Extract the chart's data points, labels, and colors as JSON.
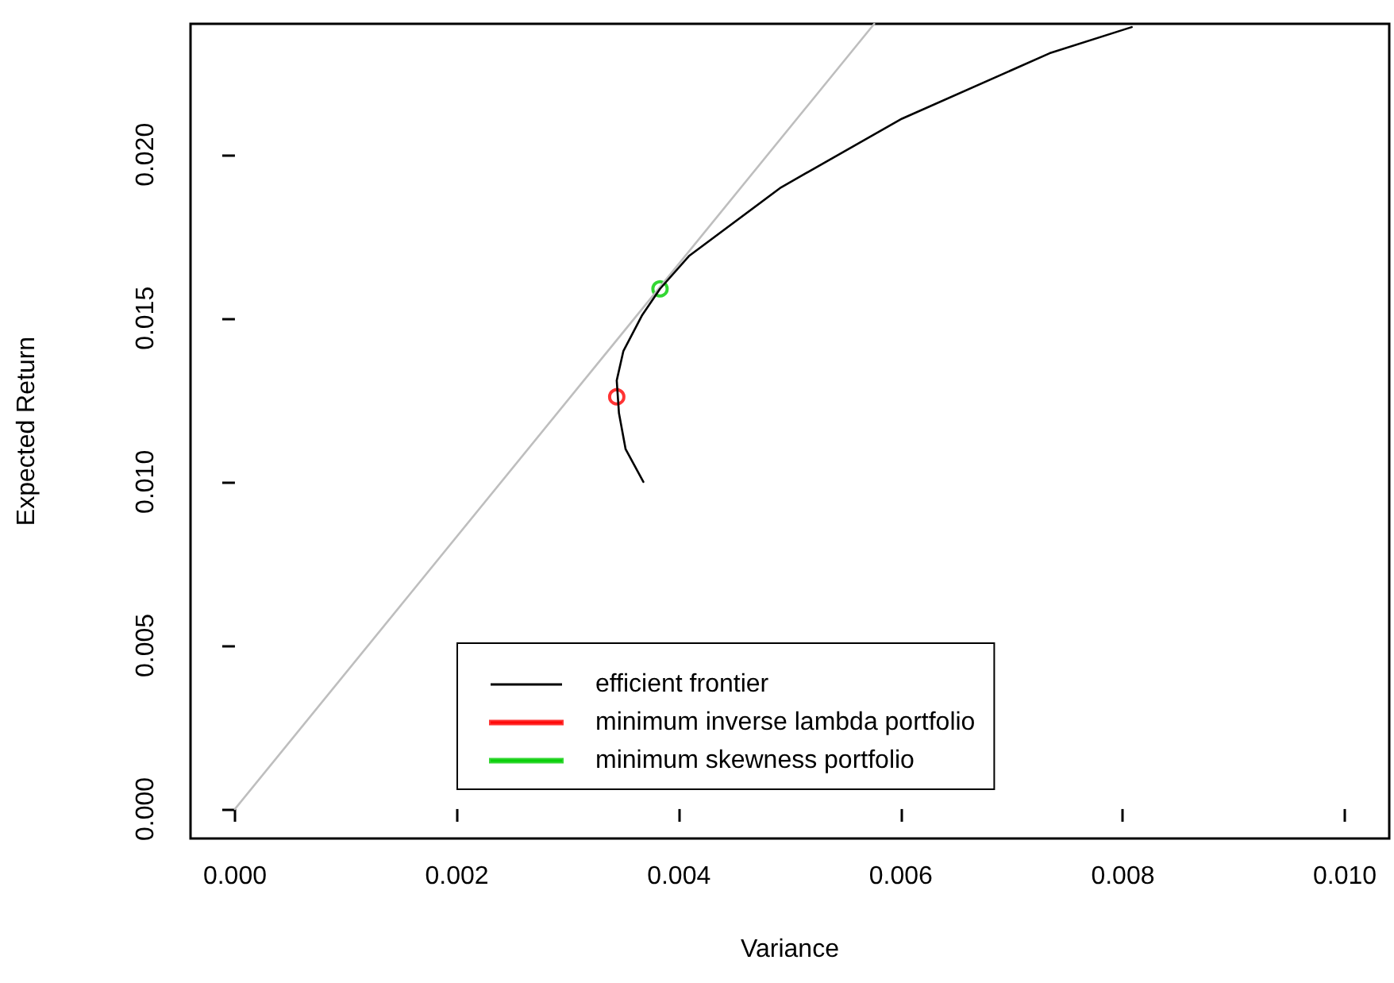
{
  "chart_data": {
    "type": "line",
    "xlabel": "Variance",
    "ylabel": "Expected Return",
    "xlim": [
      -0.0004,
      0.0104
    ],
    "ylim": [
      -0.0009,
      0.024
    ],
    "xticks": [
      {
        "value": 0,
        "label": "0.000"
      },
      {
        "value": 0.002,
        "label": "0.002"
      },
      {
        "value": 0.004,
        "label": "0.004"
      },
      {
        "value": 0.006,
        "label": "0.006"
      },
      {
        "value": 0.008,
        "label": "0.008"
      },
      {
        "value": 0.01,
        "label": "0.010"
      }
    ],
    "yticks": [
      {
        "value": 0,
        "label": "0.000"
      },
      {
        "value": 0.005,
        "label": "0.005"
      },
      {
        "value": 0.01,
        "label": "0.010"
      },
      {
        "value": 0.015,
        "label": "0.015"
      },
      {
        "value": 0.02,
        "label": "0.020"
      }
    ],
    "grid": false,
    "legend": "bottom",
    "line_style": "solid",
    "series": [
      {
        "color": "#bebebe",
        "marker": "none",
        "x": [
          0,
          0.00576
        ],
        "values": [
          0,
          0.024
        ]
      },
      {
        "name": "efficient frontier",
        "color": "#000000",
        "marker": "none",
        "x": [
          0.00368,
          0.00352,
          0.00346,
          0.00344,
          0.0035,
          0.00367,
          0.00383,
          0.00409,
          0.00492,
          0.00601,
          0.00734,
          0.00808
        ],
        "values": [
          0.01,
          0.011,
          0.0121,
          0.0131,
          0.014,
          0.0151,
          0.0159,
          0.0169,
          0.019,
          0.0211,
          0.0231,
          0.0239
        ]
      },
      {
        "name": "minimum inverse lambda portfolio",
        "type": "scatter",
        "color": "#ff0000",
        "marker": "circle",
        "x": [
          0.00344
        ],
        "values": [
          0.0126
        ]
      },
      {
        "name": "minimum skewness portfolio",
        "type": "scatter",
        "color": "#00cd00",
        "marker": "circle",
        "x": [
          0.00383
        ],
        "values": [
          0.0159
        ]
      }
    ]
  }
}
